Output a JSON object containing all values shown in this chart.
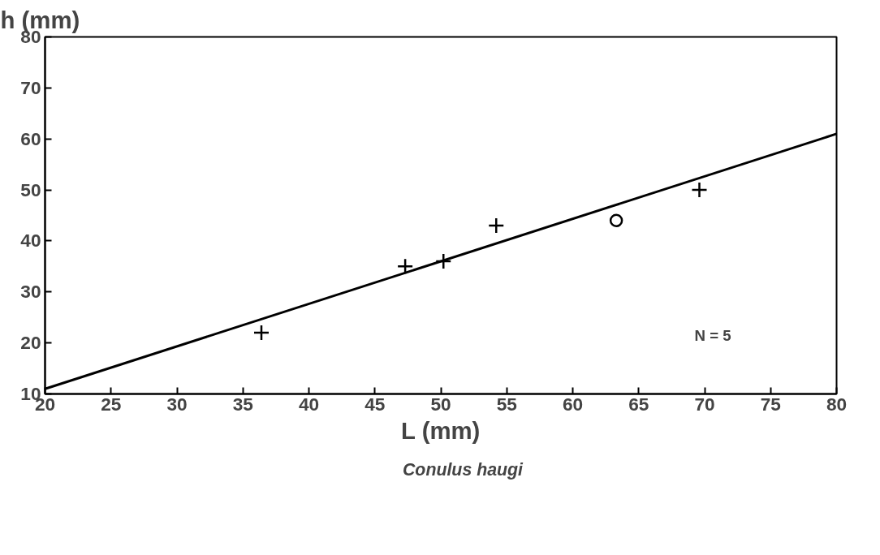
{
  "chart_data": {
    "type": "scatter",
    "xlabel": "L (mm)",
    "ylabel": "h (mm)",
    "xlim": [
      20,
      80
    ],
    "ylim": [
      10,
      80
    ],
    "xticks": [
      20,
      25,
      30,
      35,
      40,
      45,
      50,
      55,
      60,
      65,
      70,
      75,
      80
    ],
    "yticks": [
      10,
      20,
      30,
      40,
      50,
      60,
      70,
      80
    ],
    "series": [
      {
        "name": "Conulus haugi",
        "marker": "cross",
        "color": "#000000",
        "x": [
          36.4,
          47.3,
          50.2,
          54.2,
          69.6
        ],
        "values": [
          22,
          35,
          36,
          43,
          50
        ]
      },
      {
        "marker": "circle",
        "color": "#000000",
        "x": [
          63.3
        ],
        "values": [
          44
        ]
      },
      {
        "type": "line",
        "marker": "none",
        "color": "#000000",
        "x": [
          20,
          80
        ],
        "values": [
          11,
          61
        ]
      }
    ],
    "annotations": [
      "N = 5"
    ],
    "grid": false,
    "legend": "bottom"
  }
}
